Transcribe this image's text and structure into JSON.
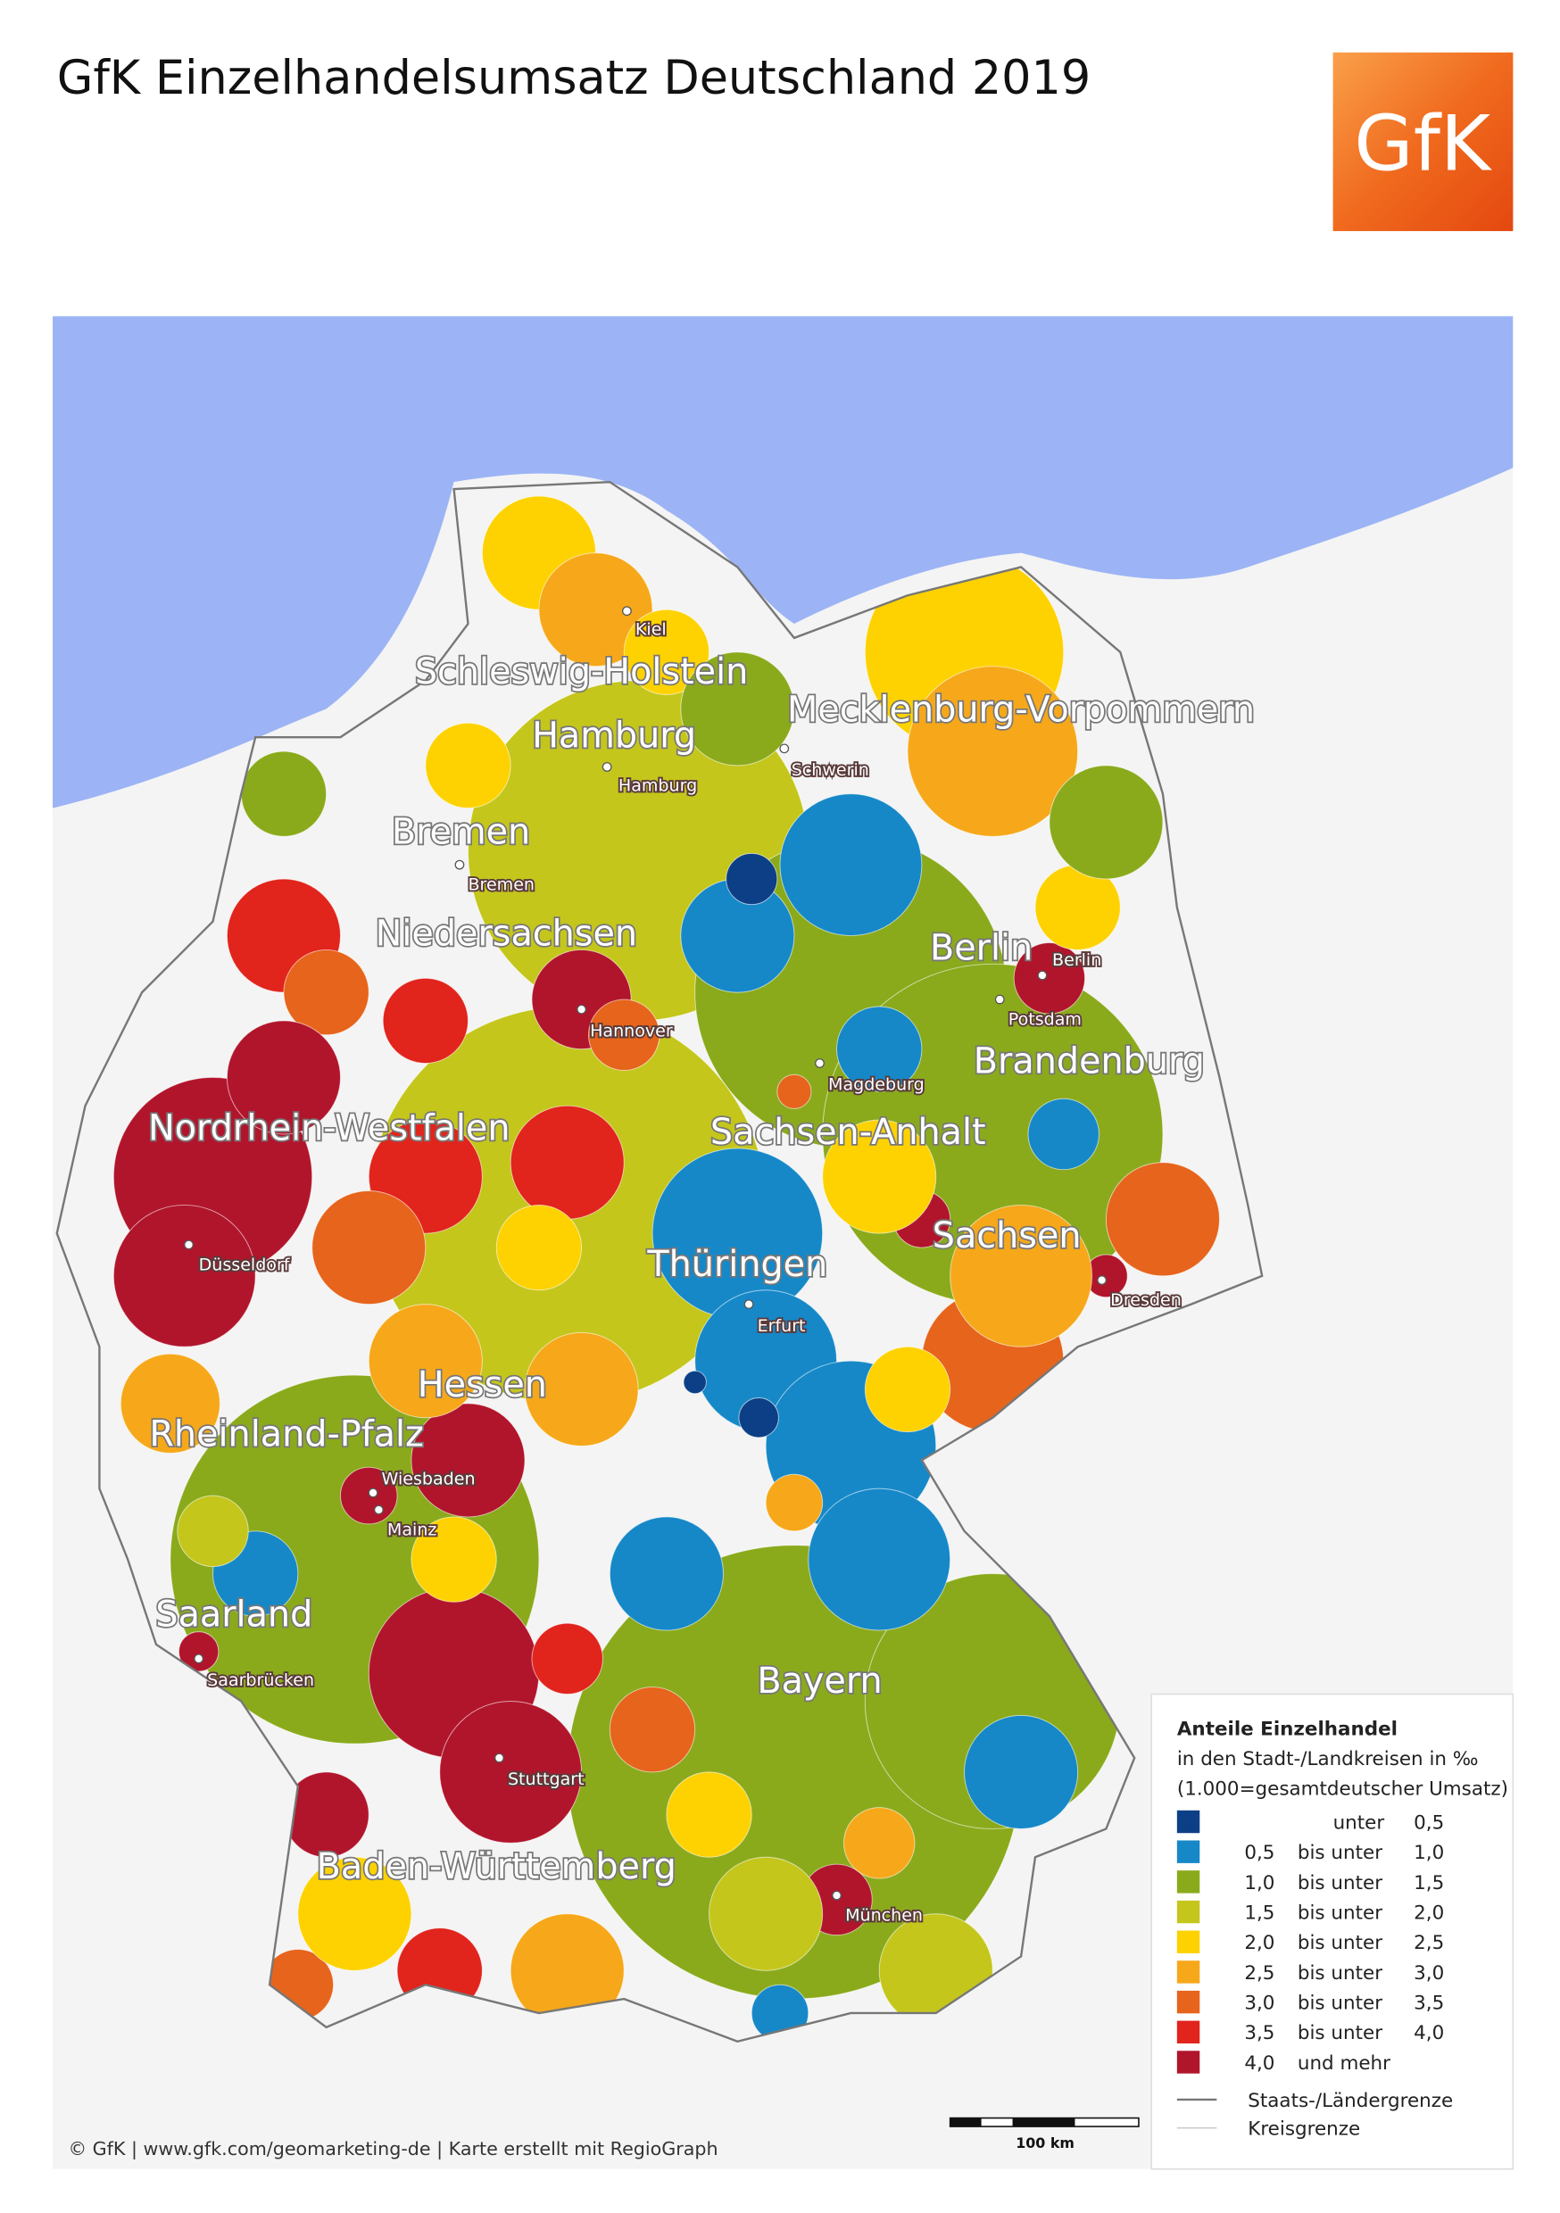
{
  "header": {
    "title": "GfK Einzelhandelsumsatz Deutschland 2019",
    "logo": "GfK"
  },
  "map": {
    "states": [
      "Schleswig-Holstein",
      "Hamburg",
      "Mecklenburg-Vorpommern",
      "Bremen",
      "Niedersachsen",
      "Berlin",
      "Brandenburg",
      "Nordrhein-Westfalen",
      "Sachsen-Anhalt",
      "Thüringen",
      "Sachsen",
      "Hessen",
      "Rheinland-Pfalz",
      "Saarland",
      "Bayern",
      "Baden-Württemberg"
    ],
    "cities": [
      "Kiel",
      "Hamburg",
      "Schwerin",
      "Bremen",
      "Hannover",
      "Berlin",
      "Potsdam",
      "Magdeburg",
      "Düsseldorf",
      "Erfurt",
      "Dresden",
      "Wiesbaden",
      "Mainz",
      "Saarbrücken",
      "Stuttgart",
      "München"
    ]
  },
  "legend": {
    "title": "Anteile Einzelhandel",
    "subtitle": "in den Stadt-/Landkreisen in ‰",
    "note": "(1.000=gesamtdeutscher Umsatz)",
    "classes": [
      {
        "label": "unter",
        "to": "0,5",
        "color": "#0d3f86"
      },
      {
        "from": "0,5",
        "label": "bis unter",
        "to": "1,0",
        "color": "#1688c8"
      },
      {
        "from": "1,0",
        "label": "bis unter",
        "to": "1,5",
        "color": "#8aaa1c"
      },
      {
        "from": "1,5",
        "label": "bis unter",
        "to": "2,0",
        "color": "#c4c61c"
      },
      {
        "from": "2,0",
        "label": "bis unter",
        "to": "2,5",
        "color": "#fdd200"
      },
      {
        "from": "2,5",
        "label": "bis unter",
        "to": "3,0",
        "color": "#f6a81a"
      },
      {
        "from": "3,0",
        "label": "bis unter",
        "to": "3,5",
        "color": "#e6641c"
      },
      {
        "from": "3,5",
        "label": "bis unter",
        "to": "4,0",
        "color": "#e1241c"
      },
      {
        "from": "4,0",
        "label": "und mehr",
        "color": "#b1152c"
      }
    ],
    "lines": [
      "Staats-/Ländergrenze",
      "Kreisgrenze"
    ]
  },
  "scale": "100 km",
  "footer": "© GfK | www.gfk.com/geomarketing-de | Karte erstellt mit RegioGraph"
}
